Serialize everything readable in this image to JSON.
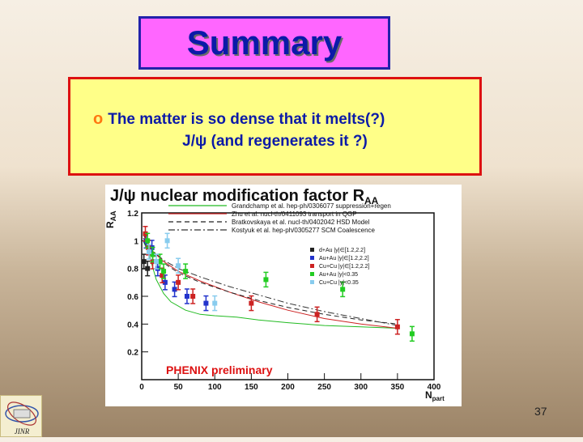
{
  "slide": {
    "title": "Summary",
    "bullet_marker": "o",
    "bullet_line1": "The matter is so dense that it melts(?)",
    "bullet_line2": "J/ψ (and regenerates it ?)",
    "page_number": "37",
    "logo_text": "JINR"
  },
  "colors": {
    "title_bg": "#ff66ff",
    "title_text": "#0b1aa8",
    "bullet_bg": "#ffff88",
    "bullet_border": "#dd1111"
  },
  "chart_data": {
    "type": "scatter",
    "title": "J/ψ nuclear modification factor R",
    "title_sub": "AA",
    "ylabel": "R",
    "ylabel_sub": "AA",
    "xlabel": "N",
    "xlabel_sub": "part",
    "xlim": [
      0,
      400
    ],
    "ylim": [
      0,
      1.2
    ],
    "x_ticks": [
      0,
      50,
      100,
      150,
      200,
      250,
      300,
      350,
      400
    ],
    "y_ticks": [
      0.2,
      0.4,
      0.6,
      0.8,
      1,
      1.2
    ],
    "watermark": "PHENIX preliminary",
    "models": [
      {
        "label": "Grandchamp et al. hep-ph/0306077 suppression+regen",
        "color": "#22bb22",
        "dash": "",
        "x": [
          2,
          10,
          20,
          30,
          40,
          60,
          80,
          100,
          130,
          160,
          200,
          250,
          300,
          350
        ],
        "y": [
          1.0,
          0.9,
          0.72,
          0.62,
          0.56,
          0.5,
          0.47,
          0.46,
          0.45,
          0.43,
          0.41,
          0.39,
          0.38,
          0.37
        ]
      },
      {
        "label": "Zhu et al. nucl-th/0411093 transport in QGP",
        "color": "#cc2222",
        "dash": "",
        "x": [
          2,
          10,
          30,
          50,
          80,
          120,
          160,
          200,
          250,
          300,
          350
        ],
        "y": [
          1.02,
          0.95,
          0.85,
          0.78,
          0.71,
          0.63,
          0.56,
          0.5,
          0.44,
          0.4,
          0.37
        ]
      },
      {
        "label": "Bratkovskaya et al. nucl-th/0402042 HSD Model",
        "color": "#222222",
        "dash": "6,4",
        "x": [
          2,
          10,
          30,
          50,
          80,
          120,
          160,
          200,
          250,
          300,
          350
        ],
        "y": [
          1.0,
          0.93,
          0.84,
          0.77,
          0.7,
          0.63,
          0.57,
          0.52,
          0.47,
          0.43,
          0.4
        ]
      },
      {
        "label": "Kostyuk et al. hep-ph/0305277 SCM Coalescence",
        "color": "#333333",
        "dash": "8,3,2,3",
        "x": [
          2,
          10,
          30,
          50,
          80,
          120,
          160,
          200,
          250,
          300,
          350
        ],
        "y": [
          1.05,
          0.95,
          0.86,
          0.8,
          0.74,
          0.67,
          0.61,
          0.55,
          0.49,
          0.44,
          0.39
        ]
      }
    ],
    "series": [
      {
        "name": "d+Au |y|∈[1.2,2.2]",
        "color": "#222222",
        "x": [
          3,
          8
        ],
        "y": [
          0.85,
          0.8
        ]
      },
      {
        "name": "Au+Au |y|∈[1.2,2.2]",
        "color": "#2233cc",
        "x": [
          6,
          14,
          22,
          32,
          45,
          62,
          88
        ],
        "y": [
          1.0,
          0.95,
          0.8,
          0.7,
          0.65,
          0.6,
          0.55
        ]
      },
      {
        "name": "Cu+Cu |y|∈[1.2,2.2]",
        "color": "#cc2222",
        "x": [
          5,
          9,
          15,
          28,
          50,
          70,
          150,
          240,
          350
        ],
        "y": [
          1.05,
          0.95,
          0.85,
          0.75,
          0.7,
          0.6,
          0.55,
          0.47,
          0.38
        ]
      },
      {
        "name": "Au+Au |y|<0.35",
        "color": "#22cc22",
        "x": [
          8,
          15,
          25,
          30,
          60,
          170,
          275,
          370
        ],
        "y": [
          1.0,
          0.9,
          0.85,
          0.78,
          0.78,
          0.72,
          0.65,
          0.33
        ]
      },
      {
        "name": "Cu+Cu |y|<0.35",
        "color": "#88ccee",
        "x": [
          10,
          20,
          35,
          50,
          100
        ],
        "y": [
          0.92,
          0.85,
          1.0,
          0.82,
          0.55
        ]
      }
    ]
  }
}
